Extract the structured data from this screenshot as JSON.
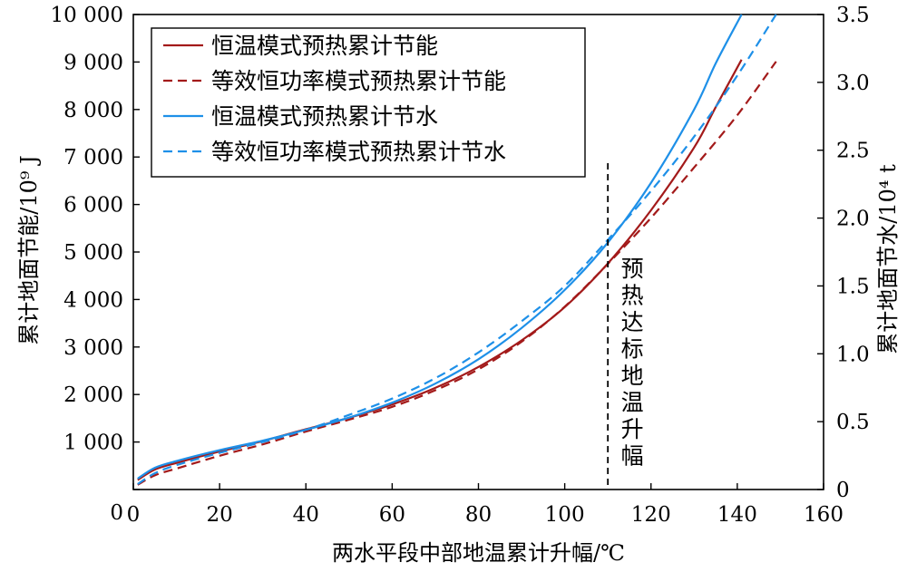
{
  "chart_data": {
    "type": "line",
    "xlabel": "两水平段中部地温累计升幅/℃",
    "ylabel_left": "累计地面节能/10⁹ J",
    "ylabel_right": "累计地面节水/10⁴ t",
    "xlim": [
      0,
      160
    ],
    "ylim_left": [
      0,
      10000
    ],
    "ylim_right": [
      0,
      3.5
    ],
    "x_ticks": [
      0,
      20,
      40,
      60,
      80,
      100,
      120,
      140,
      160
    ],
    "x_tick_labels": [
      "0",
      "20",
      "40",
      "60",
      "80",
      "100",
      "120",
      "140",
      "160"
    ],
    "y_left_ticks": [
      0,
      1000,
      2000,
      3000,
      4000,
      5000,
      6000,
      7000,
      8000,
      9000,
      10000
    ],
    "y_left_tick_labels": [
      "0",
      "1 000",
      "2 000",
      "3 000",
      "4 000",
      "5 000",
      "6 000",
      "7 000",
      "8 000",
      "9 000",
      "10 000"
    ],
    "y_right_ticks": [
      0,
      0.5,
      1.0,
      1.5,
      2.0,
      2.5,
      3.0,
      3.5
    ],
    "y_right_tick_labels": [
      "0",
      "0.5",
      "1.0",
      "1.5",
      "2.0",
      "2.5",
      "3.0",
      "3.5"
    ],
    "legend_position": "top-left",
    "grid": false,
    "series": [
      {
        "name": "恒温模式预热累计节能",
        "axis": "left",
        "color": "#a31a1a",
        "dash": "solid",
        "x": [
          1,
          5,
          10,
          20,
          30,
          40,
          50,
          60,
          70,
          80,
          90,
          100,
          110,
          120,
          130,
          135,
          141
        ],
        "y": [
          200,
          420,
          560,
          800,
          1020,
          1270,
          1510,
          1790,
          2140,
          2580,
          3140,
          3840,
          4760,
          5880,
          7200,
          8050,
          9050
        ]
      },
      {
        "name": "等效恒功率模式预热累计节能",
        "axis": "left",
        "color": "#a31a1a",
        "dash": "dashed",
        "x": [
          1,
          5,
          10,
          20,
          30,
          40,
          50,
          60,
          70,
          80,
          90,
          100,
          110,
          120,
          130,
          140,
          149
        ],
        "y": [
          100,
          300,
          440,
          710,
          950,
          1220,
          1470,
          1740,
          2090,
          2530,
          3110,
          3850,
          4750,
          5720,
          6780,
          7880,
          9010
        ]
      },
      {
        "name": "恒温模式预热累计节水",
        "axis": "right",
        "color": "#1e90e8",
        "dash": "solid",
        "x": [
          1,
          5,
          10,
          20,
          30,
          40,
          50,
          60,
          70,
          80,
          90,
          100,
          110,
          120,
          130,
          135,
          141
        ],
        "y": [
          0.08,
          0.16,
          0.21,
          0.29,
          0.36,
          0.44,
          0.53,
          0.64,
          0.78,
          0.96,
          1.19,
          1.47,
          1.82,
          2.26,
          2.8,
          3.14,
          3.5
        ]
      },
      {
        "name": "等效恒功率模式预热累计节水",
        "axis": "right",
        "color": "#1e90e8",
        "dash": "dashed",
        "x": [
          1,
          5,
          10,
          20,
          30,
          40,
          50,
          60,
          70,
          80,
          90,
          100,
          110,
          120,
          130,
          140,
          149
        ],
        "y": [
          0.04,
          0.12,
          0.18,
          0.27,
          0.35,
          0.44,
          0.55,
          0.67,
          0.82,
          1.01,
          1.24,
          1.5,
          1.84,
          2.2,
          2.6,
          3.05,
          3.5
        ]
      }
    ],
    "annotation": {
      "x": 110,
      "text": [
        "预",
        "热",
        "达",
        "标",
        "地",
        "温",
        "升",
        "幅"
      ]
    }
  }
}
